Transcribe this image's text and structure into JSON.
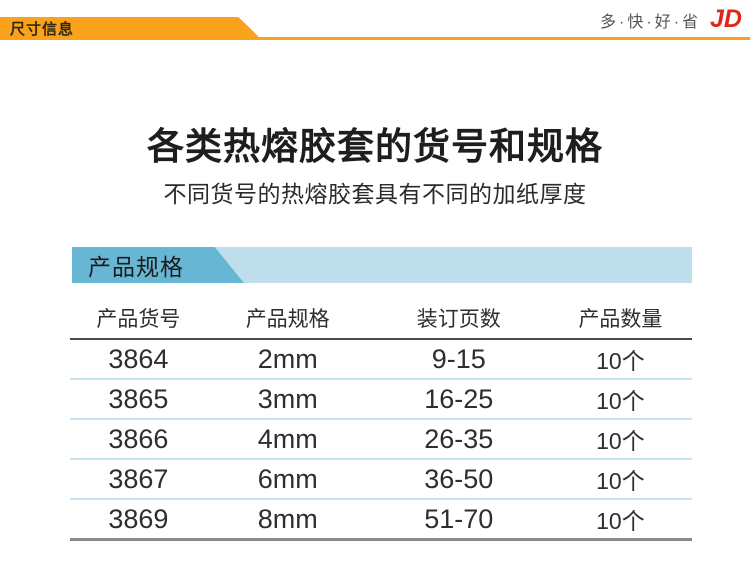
{
  "header": {
    "banner_label": "尺寸信息",
    "brand_slogan": "多·快·好·省",
    "brand_logo": "JD",
    "colors": {
      "banner_orange": "#FAA21B",
      "logo_red": "#E0251B",
      "slogan_gray": "#54565A"
    }
  },
  "intro": {
    "title": "各类热熔胶套的货号和规格",
    "subtitle": "不同货号的热熔胶套具有不同的加纸厚度"
  },
  "section": {
    "label": "产品规格",
    "colors": {
      "tab_blue": "#67B6D3",
      "bar_blue": "#BDDEEA"
    }
  },
  "table": {
    "columns": [
      "产品货号",
      "产品规格",
      "装订页数",
      "产品数量"
    ],
    "rows": [
      [
        "3864",
        "2mm",
        "9-15",
        "10个"
      ],
      [
        "3865",
        "3mm",
        "16-25",
        "10个"
      ],
      [
        "3866",
        "4mm",
        "26-35",
        "10个"
      ],
      [
        "3867",
        "6mm",
        "36-50",
        "10个"
      ],
      [
        "3869",
        "8mm",
        "51-70",
        "10个"
      ]
    ]
  }
}
